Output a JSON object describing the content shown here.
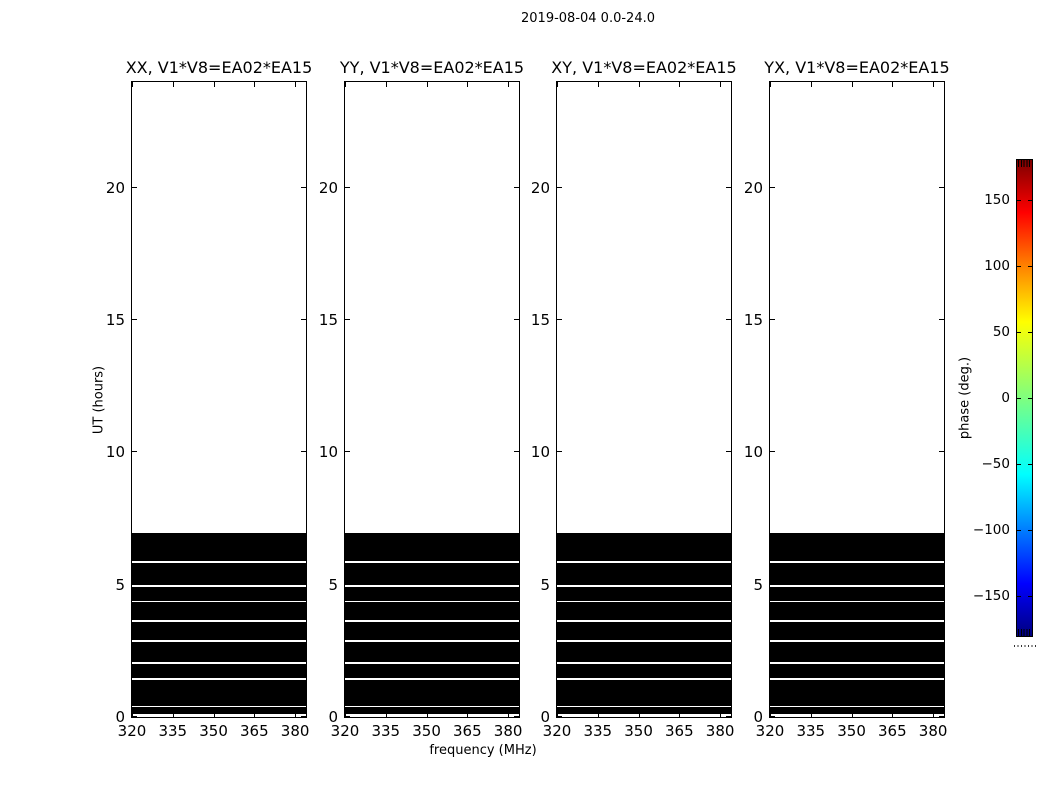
{
  "figure": {
    "background_color": "#ffffff",
    "foreground_color": "#000000"
  },
  "chart_data": {
    "type": "heatmap",
    "suptitle": "2019-08-04 0.0-24.0",
    "panels": [
      {
        "title": "XX, V1*V8=EA02*EA15"
      },
      {
        "title": "YY, V1*V8=EA02*EA15"
      },
      {
        "title": "XY, V1*V8=EA02*EA15"
      },
      {
        "title": "YX, V1*V8=EA02*EA15"
      }
    ],
    "xlabel": "frequency (MHz)",
    "ylabel": "UT (hours)",
    "xlim": [
      320,
      384
    ],
    "ylim": [
      0,
      24
    ],
    "xticks": [
      320,
      335,
      350,
      365,
      380
    ],
    "yticks": [
      0,
      5,
      10,
      15,
      20
    ],
    "grid": false,
    "legend": "none",
    "band_fill_color": "#000000",
    "data_bands_ut_hours": [
      [
        0.11,
        0.38
      ],
      [
        0.43,
        1.4
      ],
      [
        1.47,
        2.02
      ],
      [
        2.09,
        2.84
      ],
      [
        2.9,
        3.6
      ],
      [
        3.66,
        4.33
      ],
      [
        4.39,
        4.93
      ],
      [
        5.0,
        5.84
      ],
      [
        5.88,
        6.97
      ]
    ],
    "colorbar": {
      "label": "phase (deg.)",
      "ticks": [
        "150",
        "100",
        "50",
        "0",
        "−50",
        "−100",
        "−150"
      ],
      "tick_values": [
        150,
        100,
        50,
        0,
        -50,
        -100,
        -150
      ],
      "vmin": -180,
      "vmax": 180,
      "colormap": "jet",
      "gradient": [
        {
          "color": "#7f0000",
          "pos": 0
        },
        {
          "color": "#ff0000",
          "pos": 11
        },
        {
          "color": "#ff7f00",
          "pos": 22
        },
        {
          "color": "#ffff00",
          "pos": 34
        },
        {
          "color": "#7fff7f",
          "pos": 50
        },
        {
          "color": "#00ffff",
          "pos": 66
        },
        {
          "color": "#0000ff",
          "pos": 89
        },
        {
          "color": "#00007f",
          "pos": 100
        }
      ]
    }
  }
}
